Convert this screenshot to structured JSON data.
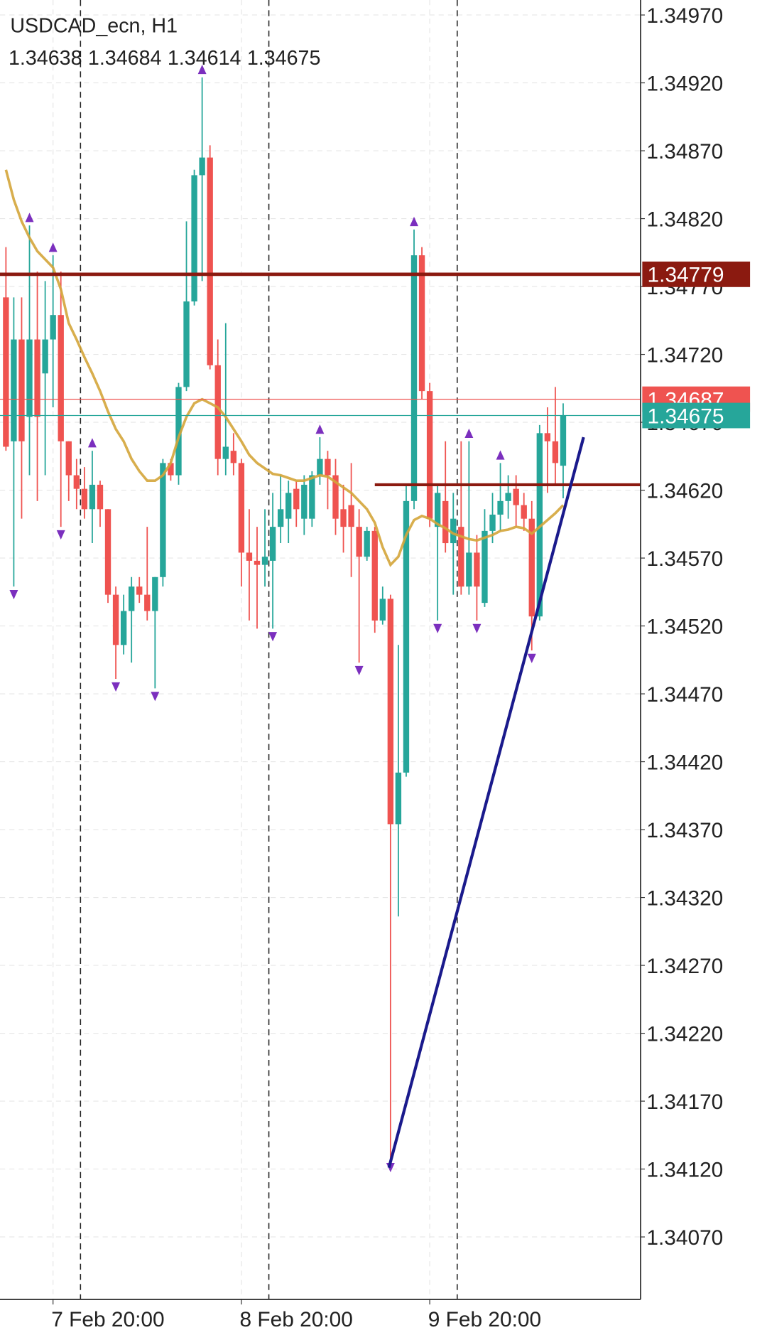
{
  "chart_data": {
    "type": "candlestick",
    "title": "USDCAD_ecn, H1",
    "ylim": [
      1.34024,
      1.34981
    ],
    "yticks": [
      {
        "value": 1.3497,
        "label": "1.34970"
      },
      {
        "value": 1.3492,
        "label": "1.34920"
      },
      {
        "value": 1.3487,
        "label": "1.34870"
      },
      {
        "value": 1.3482,
        "label": "1.34820"
      },
      {
        "value": 1.3477,
        "label": "1.34770"
      },
      {
        "value": 1.3472,
        "label": "1.34720"
      },
      {
        "value": 1.3467,
        "label": "1.34670"
      },
      {
        "value": 1.3462,
        "label": "1.34620"
      },
      {
        "value": 1.3457,
        "label": "1.34570"
      },
      {
        "value": 1.3452,
        "label": "1.34520"
      },
      {
        "value": 1.3447,
        "label": "1.34470"
      },
      {
        "value": 1.3442,
        "label": "1.34420"
      },
      {
        "value": 1.3437,
        "label": "1.34370"
      },
      {
        "value": 1.3432,
        "label": "1.34320"
      },
      {
        "value": 1.3427,
        "label": "1.34270"
      },
      {
        "value": 1.3422,
        "label": "1.34220"
      },
      {
        "value": 1.3417,
        "label": "1.34170"
      },
      {
        "value": 1.3412,
        "label": "1.34120"
      },
      {
        "value": 1.3407,
        "label": "1.34070"
      }
    ],
    "grid": true,
    "up_color": "#26a69a",
    "down_color": "#ef5350",
    "categories": [
      null,
      null,
      null,
      null,
      null,
      null,
      "7 Feb 20:00",
      null,
      null,
      null,
      null,
      null,
      null,
      null,
      null,
      null,
      null,
      null,
      null,
      null,
      null,
      null,
      null,
      null,
      null,
      null,
      null,
      null,
      null,
      null,
      "8 Feb 20:00",
      null,
      null,
      null,
      null,
      null,
      null,
      null,
      null,
      null,
      null,
      null,
      null,
      null,
      null,
      null,
      null,
      null,
      null,
      null,
      null,
      null,
      null,
      null,
      "9 Feb 20:00",
      null,
      null,
      null,
      null,
      null,
      null,
      null,
      null,
      null,
      null,
      null,
      null,
      null,
      null,
      null,
      null,
      null
    ],
    "ohlc": [
      [
        1.34762,
        1.34799,
        1.34649,
        1.34652
      ],
      [
        1.34656,
        1.34762,
        1.34549,
        1.34731
      ],
      [
        1.34731,
        1.34762,
        1.34599,
        1.34656
      ],
      [
        1.34674,
        1.34815,
        1.34631,
        1.34731
      ],
      [
        1.34731,
        1.34781,
        1.34612,
        1.34674
      ],
      [
        1.34706,
        1.34774,
        1.34631,
        1.34731
      ],
      [
        1.34731,
        1.34793,
        1.34681,
        1.34749
      ],
      [
        1.34749,
        1.34781,
        1.34593,
        1.34656
      ],
      [
        1.34656,
        1.34656,
        1.34612,
        1.34631
      ],
      [
        1.34631,
        1.34643,
        1.34606,
        1.34621
      ],
      [
        1.34621,
        1.34637,
        1.34599,
        1.34606
      ],
      [
        1.34606,
        1.34649,
        1.34581,
        1.34624
      ],
      [
        1.34624,
        1.34627,
        1.34593,
        1.34606
      ],
      [
        1.34606,
        1.34606,
        1.34537,
        1.34543
      ],
      [
        1.34543,
        1.34549,
        1.34481,
        1.34506
      ],
      [
        1.34506,
        1.34543,
        1.34499,
        1.34531
      ],
      [
        1.34531,
        1.34556,
        1.34493,
        1.34549
      ],
      [
        1.34549,
        1.34556,
        1.34537,
        1.34543
      ],
      [
        1.34543,
        1.34593,
        1.34524,
        1.34531
      ],
      [
        1.34531,
        1.34556,
        1.34474,
        1.34556
      ],
      [
        1.34556,
        1.34643,
        1.34549,
        1.3464
      ],
      [
        1.3464,
        1.34643,
        1.34627,
        1.34631
      ],
      [
        1.34631,
        1.34699,
        1.34624,
        1.34696
      ],
      [
        1.34696,
        1.34818,
        1.34693,
        1.34759
      ],
      [
        1.34759,
        1.34856,
        1.34756,
        1.34852
      ],
      [
        1.34852,
        1.34924,
        1.34774,
        1.34865
      ],
      [
        1.34865,
        1.34874,
        1.34709,
        1.34712
      ],
      [
        1.34712,
        1.34731,
        1.34631,
        1.34643
      ],
      [
        1.34643,
        1.34743,
        1.34631,
        1.34652
      ],
      [
        1.34649,
        1.34662,
        1.34631,
        1.3464
      ],
      [
        1.3464,
        1.34643,
        1.34549,
        1.34574
      ],
      [
        1.34574,
        1.34606,
        1.34524,
        1.34568
      ],
      [
        1.34568,
        1.34593,
        1.34518,
        1.34565
      ],
      [
        1.34565,
        1.34606,
        1.34549,
        1.34571
      ],
      [
        1.34568,
        1.34618,
        1.34518,
        1.34593
      ],
      [
        1.34593,
        1.34631,
        1.34581,
        1.34606
      ],
      [
        1.34599,
        1.34627,
        1.34581,
        1.34618
      ],
      [
        1.34621,
        1.34627,
        1.34593,
        1.34606
      ],
      [
        1.34599,
        1.34631,
        1.34587,
        1.34624
      ],
      [
        1.34599,
        1.34634,
        1.34593,
        1.34631
      ],
      [
        1.34631,
        1.34659,
        1.34624,
        1.34643
      ],
      [
        1.34643,
        1.34649,
        1.34606,
        1.34631
      ],
      [
        1.34631,
        1.34643,
        1.34587,
        1.34599
      ],
      [
        1.34606,
        1.34624,
        1.34574,
        1.34593
      ],
      [
        1.34609,
        1.3464,
        1.34556,
        1.34593
      ],
      [
        1.34593,
        1.34606,
        1.34493,
        1.34571
      ],
      [
        1.34571,
        1.34593,
        1.34568,
        1.3459
      ],
      [
        1.3459,
        1.34593,
        1.34515,
        1.34524
      ],
      [
        1.34524,
        1.34549,
        1.34521,
        1.3454
      ],
      [
        1.3454,
        1.34543,
        1.34127,
        1.34374
      ],
      [
        1.34374,
        1.34506,
        1.34306,
        1.34412
      ],
      [
        1.34412,
        1.34624,
        1.34409,
        1.34612
      ],
      [
        1.34612,
        1.34812,
        1.34606,
        1.34793
      ],
      [
        1.34793,
        1.34799,
        1.34687,
        1.34693
      ],
      [
        1.34693,
        1.34699,
        1.34593,
        1.34599
      ],
      [
        1.34593,
        1.34624,
        1.34524,
        1.34618
      ],
      [
        1.34612,
        1.34656,
        1.34574,
        1.34581
      ],
      [
        1.34581,
        1.34618,
        1.34543,
        1.34599
      ],
      [
        1.34593,
        1.34656,
        1.34543,
        1.34549
      ],
      [
        1.34549,
        1.34656,
        1.34543,
        1.34574
      ],
      [
        1.34574,
        1.34587,
        1.34524,
        1.34549
      ],
      [
        1.34537,
        1.34606,
        1.34534,
        1.3459
      ],
      [
        1.3459,
        1.34618,
        1.34581,
        1.34602
      ],
      [
        1.34602,
        1.3464,
        1.3459,
        1.34612
      ],
      [
        1.34612,
        1.34631,
        1.34599,
        1.34618
      ],
      [
        1.34621,
        1.34631,
        1.34593,
        1.34609
      ],
      [
        1.34609,
        1.34618,
        1.3459,
        1.34599
      ],
      [
        1.34599,
        1.34612,
        1.34502,
        1.34527
      ],
      [
        1.34527,
        1.34668,
        1.34524,
        1.34662
      ],
      [
        1.34662,
        1.34681,
        1.34618,
        1.34656
      ],
      [
        1.34656,
        1.34696,
        1.34624,
        1.3464
      ],
      [
        1.34638,
        1.34684,
        1.34614,
        1.34675
      ]
    ],
    "moving_average": {
      "color": "#d4a53a",
      "values": [
        1.34856,
        1.34834,
        1.34818,
        1.34806,
        1.34796,
        1.3479,
        1.34784,
        1.34768,
        1.34743,
        1.34731,
        1.34718,
        1.34706,
        1.34693,
        1.34678,
        1.34665,
        1.34656,
        1.34643,
        1.34634,
        1.34627,
        1.34627,
        1.34631,
        1.3464,
        1.34659,
        1.34674,
        1.34684,
        1.34687,
        1.34684,
        1.34681,
        1.34674,
        1.34665,
        1.34656,
        1.34646,
        1.3464,
        1.34636,
        1.34632,
        1.34631,
        1.34629,
        1.34627,
        1.34627,
        1.34629,
        1.34631,
        1.3463,
        1.34626,
        1.34622,
        1.34618,
        1.34612,
        1.34606,
        1.34596,
        1.34578,
        1.34565,
        1.34571,
        1.34587,
        1.34598,
        1.34601,
        1.34599,
        1.34595,
        1.34592,
        1.34588,
        1.34586,
        1.34584,
        1.34583,
        1.34585,
        1.34587,
        1.3459,
        1.34591,
        1.34593,
        1.34592,
        1.34588,
        1.34593,
        1.34598,
        1.34603,
        1.34609
      ]
    },
    "fractals_up": [
      3,
      6,
      11,
      25,
      40,
      52,
      59,
      63
    ],
    "fractals_down": [
      1,
      7,
      14,
      19,
      34,
      45,
      49,
      55,
      60,
      67
    ],
    "fractal_color": "#7b2fbe",
    "price_tags": [
      {
        "value": 1.34779,
        "color": "#8b1a10",
        "line_width": 4
      },
      {
        "value": 1.34687,
        "color": "#ef5350",
        "line_width": 1
      },
      {
        "value": 1.34675,
        "color": "#26a69a",
        "line_width": 1
      }
    ],
    "level": {
      "value": 1.34624,
      "color": "#8b1a10",
      "from": 47.0
    },
    "trendline": {
      "color": "#1a1a8c",
      "x": [
        48.8,
        73.6
      ],
      "y": [
        1.34121,
        1.34659
      ]
    }
  }
}
